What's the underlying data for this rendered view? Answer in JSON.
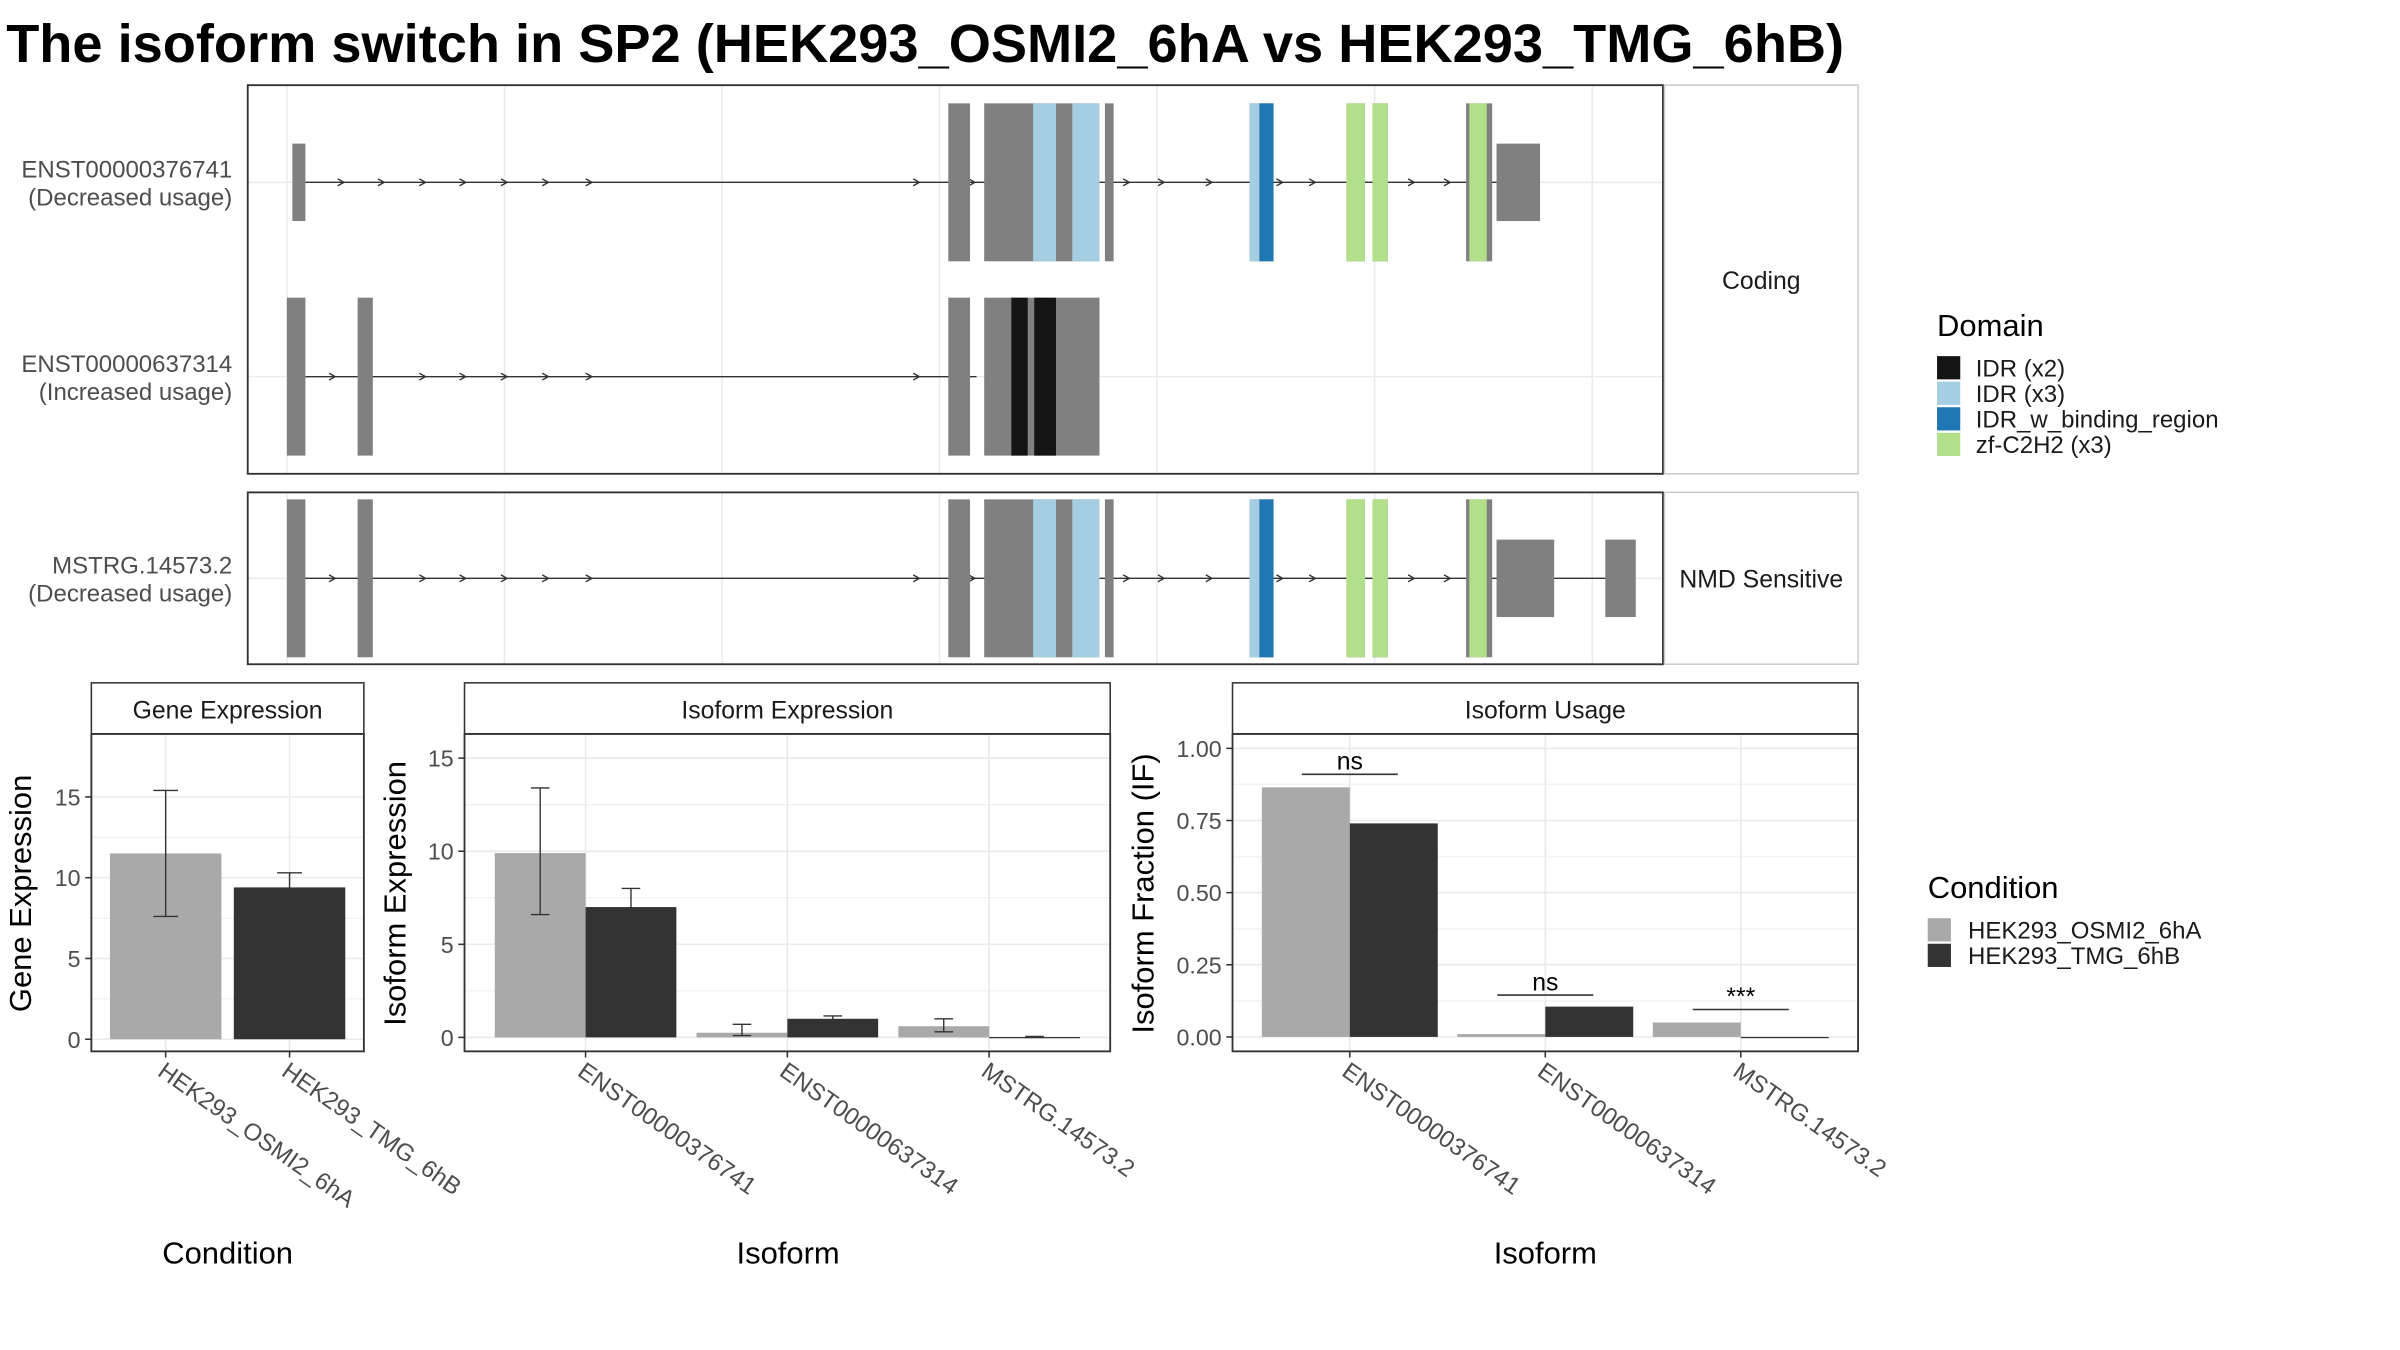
{
  "title": "The isoform switch in SP2 (HEK293_OSMI2_6hA vs HEK293_TMG_6hB)",
  "colors": {
    "exon": "#808080",
    "grid": "#ebebeb",
    "intron": "#333333",
    "cond_a": "#a9a9a9",
    "cond_b": "#333333",
    "IDR (x2)": "#141414",
    "IDR (x3)": "#a6cee3",
    "IDR_w_binding_region": "#1f78b4",
    "zf-C2H2 (x3)": "#b2df8a"
  },
  "structure": {
    "panels": [
      {
        "strip": "Coding",
        "tracks": [
          {
            "id": "ENST00000376741",
            "usage": "(Decreased usage)",
            "exons": [
              [
                0.5,
                1.7,
                0,
                "small"
              ],
              [
                60.8,
                62.8,
                0
              ],
              [
                64.1,
                74.7,
                0
              ],
              [
                75.2,
                76,
                0
              ],
              [
                88.5,
                90.7,
                0
              ],
              [
                97.4,
                99.1,
                0
              ],
              [
                99.8,
                101.2,
                0
              ],
              [
                108.4,
                110.8,
                0
              ],
              [
                111.2,
                115.2,
                1
              ]
            ],
            "domains": [
              [
                68.6,
                70.7,
                "IDR (x3)"
              ],
              [
                72.2,
                74.7,
                "IDR (x3)"
              ],
              [
                88.5,
                89.4,
                "IDR (x3)"
              ],
              [
                89.4,
                90.7,
                "IDR_w_binding_region"
              ],
              [
                97.4,
                99.1,
                "zf-C2H2 (x3)"
              ],
              [
                99.8,
                101.2,
                "zf-C2H2 (x3)"
              ],
              [
                108.7,
                110.3,
                "zf-C2H2 (x3)"
              ]
            ],
            "intron": [
              0.8,
              111.2
            ],
            "arrows": [
              5.1,
              8.8,
              12.6,
              16.3,
              20.1,
              23.9,
              27.9,
              58.0,
              63.1,
              77.3,
              80.5,
              84.9,
              91.4,
              94.4,
              103.5,
              106.8
            ]
          },
          {
            "id": "ENST00000637314",
            "usage": "(Increased usage)",
            "exons": [
              [
                0,
                1.7,
                0
              ],
              [
                6.5,
                7.9,
                0
              ],
              [
                60.8,
                62.8,
                0
              ],
              [
                64.1,
                74.7,
                0
              ]
            ],
            "domains": [
              [
                66.6,
                68.1,
                "IDR (x2)"
              ],
              [
                68.7,
                70.7,
                "IDR (x2)"
              ]
            ],
            "intron": [
              0.5,
              63.4
            ],
            "arrows": [
              4.3,
              12.6,
              16.3,
              20.1,
              23.9,
              27.9,
              58.0
            ]
          }
        ]
      },
      {
        "strip": "NMD Sensitive",
        "tracks": [
          {
            "id": "MSTRG.14573.2",
            "usage": "(Decreased usage)",
            "exons": [
              [
                0,
                1.7,
                0
              ],
              [
                6.5,
                7.9,
                0
              ],
              [
                60.8,
                62.8,
                0
              ],
              [
                64.1,
                74.7,
                0
              ],
              [
                75.2,
                76,
                0
              ],
              [
                88.5,
                90.7,
                0
              ],
              [
                97.4,
                99.1,
                0
              ],
              [
                99.8,
                101.2,
                0
              ],
              [
                108.4,
                110.8,
                0
              ],
              [
                111.2,
                116.5,
                1
              ],
              [
                121.2,
                124,
                1
              ]
            ],
            "domains": [
              [
                68.6,
                70.7,
                "IDR (x3)"
              ],
              [
                72.2,
                74.7,
                "IDR (x3)"
              ],
              [
                88.5,
                89.4,
                "IDR (x3)"
              ],
              [
                89.4,
                90.7,
                "IDR_w_binding_region"
              ],
              [
                97.4,
                99.1,
                "zf-C2H2 (x3)"
              ],
              [
                99.8,
                101.2,
                "zf-C2H2 (x3)"
              ],
              [
                108.7,
                110.3,
                "zf-C2H2 (x3)"
              ]
            ],
            "intron": [
              0.5,
              121.6
            ],
            "arrows": [
              4.3,
              12.6,
              16.3,
              20.1,
              23.9,
              27.9,
              58.0,
              63.1,
              77.3,
              80.5,
              84.9,
              91.4,
              94.4,
              103.5,
              106.8
            ]
          }
        ]
      }
    ]
  },
  "legend_domain": {
    "title": "Domain",
    "items": [
      "IDR (x2)",
      "IDR (x3)",
      "IDR_w_binding_region",
      "zf-C2H2 (x3)"
    ]
  },
  "legend_condition": {
    "title": "Condition",
    "items": [
      "HEK293_OSMI2_6hA",
      "HEK293_TMG_6hB"
    ]
  },
  "chart_data": [
    {
      "type": "bar",
      "title": "Gene Expression",
      "xlabel": "Condition",
      "ylabel": "Gene Expression",
      "categories": [
        "HEK293_OSMI2_6hA",
        "HEK293_TMG_6hB"
      ],
      "values": [
        11.5,
        9.4
      ],
      "errors": [
        [
          7.6,
          15.4
        ],
        [
          8.6,
          10.3
        ]
      ],
      "ylim": [
        -0.75,
        18.9
      ],
      "yticks": [
        0,
        5,
        10,
        15
      ],
      "grid": true
    },
    {
      "type": "bar",
      "title": "Isoform Expression",
      "xlabel": "Isoform",
      "ylabel": "Isoform Expression",
      "categories": [
        "ENST00000376741",
        "ENST00000637314",
        "MSTRG.14573.2"
      ],
      "series": [
        {
          "name": "HEK293_OSMI2_6hA",
          "values": [
            9.9,
            0.25,
            0.6
          ],
          "errors": [
            [
              6.6,
              13.4
            ],
            [
              0.1,
              0.7
            ],
            [
              0.3,
              1.0
            ]
          ]
        },
        {
          "name": "HEK293_TMG_6hB",
          "values": [
            7.0,
            1.0,
            0.02
          ],
          "errors": [
            [
              6.1,
              8.0
            ],
            [
              0.85,
              1.15
            ],
            [
              0.0,
              0.05
            ]
          ]
        }
      ],
      "ylim": [
        -0.75,
        16.3
      ],
      "yticks": [
        0,
        5,
        10,
        15
      ],
      "grid": true
    },
    {
      "type": "bar",
      "title": "Isoform Usage",
      "xlabel": "Isoform",
      "ylabel": "Isoform Fraction (IF)",
      "categories": [
        "ENST00000376741",
        "ENST00000637314",
        "MSTRG.14573.2"
      ],
      "series": [
        {
          "name": "HEK293_OSMI2_6hA",
          "values": [
            0.865,
            0.01,
            0.05
          ]
        },
        {
          "name": "HEK293_TMG_6hB",
          "values": [
            0.74,
            0.105,
            0.0
          ]
        }
      ],
      "significance": [
        {
          "label": "ns",
          "y": 0.91
        },
        {
          "label": "ns",
          "y": 0.145
        },
        {
          "label": "***",
          "y": 0.095
        }
      ],
      "ylim": [
        -0.05,
        1.05
      ],
      "yticks": [
        "0.00",
        "0.25",
        "0.50",
        "0.75",
        "1.00"
      ],
      "grid": true
    }
  ]
}
